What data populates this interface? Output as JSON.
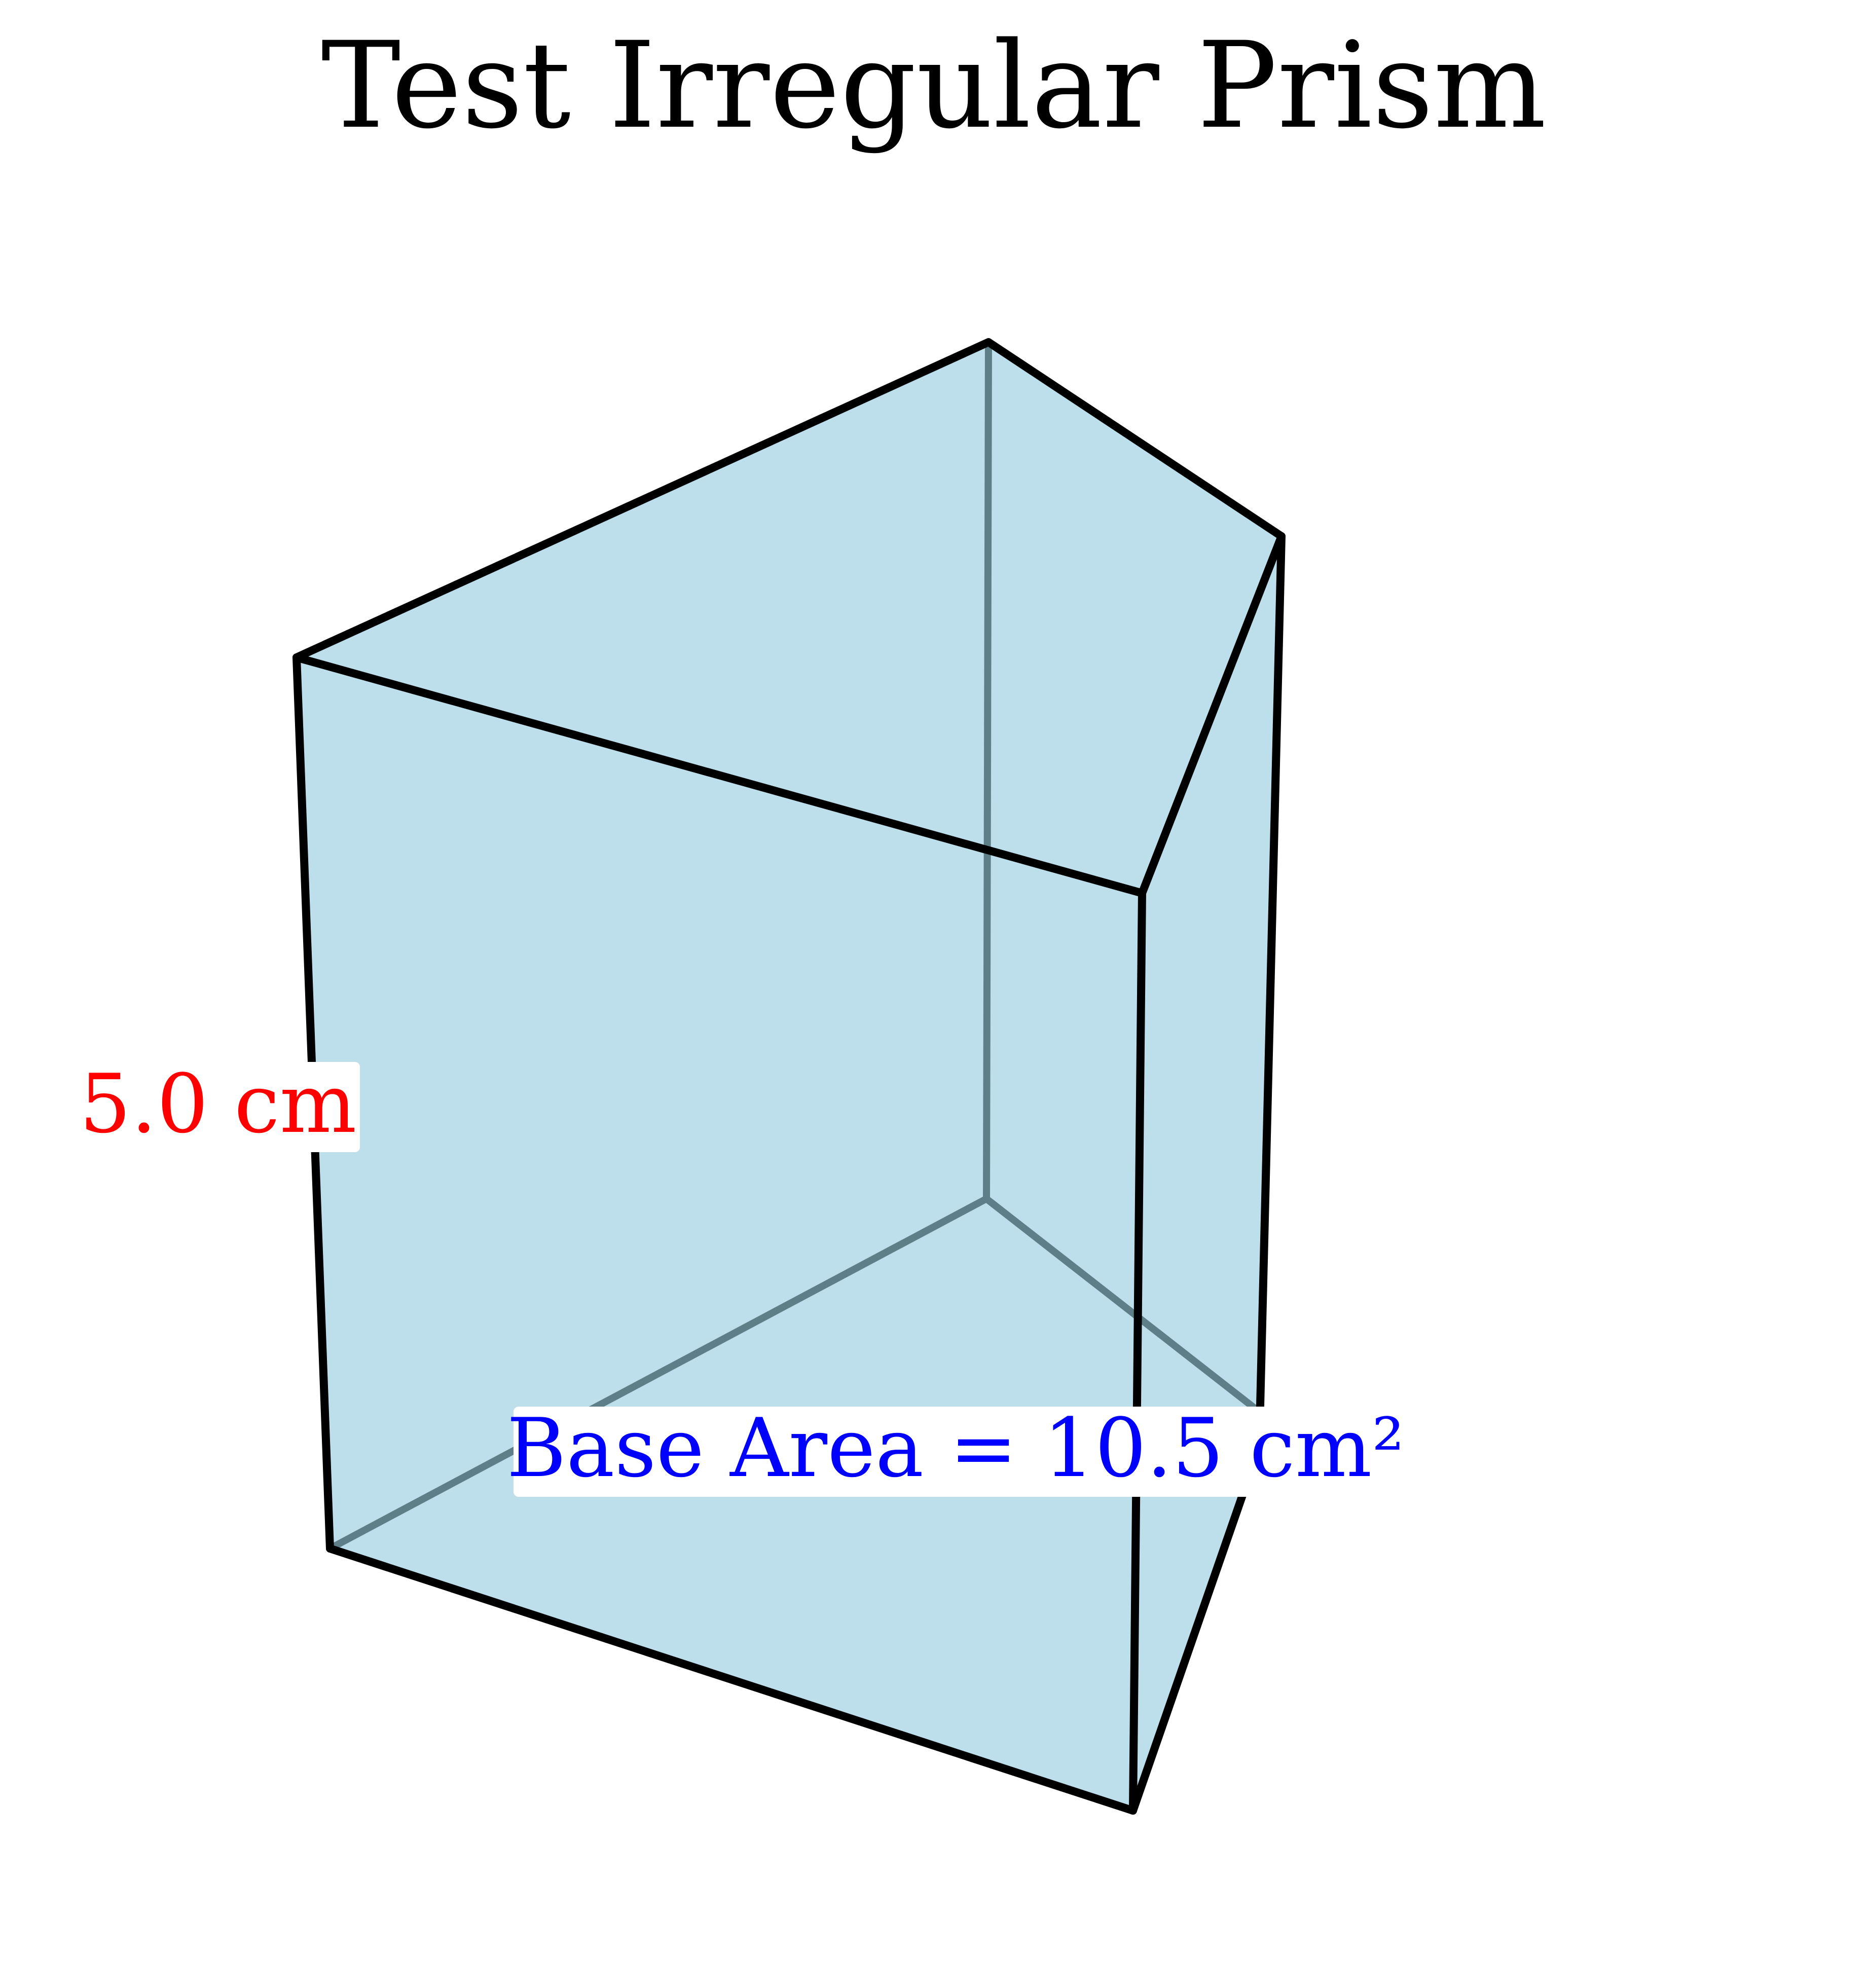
{
  "title": "Test Irregular Prism",
  "height_label": "5.0 cm",
  "base_area_label": "Base Area = 10.5 cm²",
  "colors": {
    "fill": "#add8e6",
    "edge": "#000000",
    "hidden_edge": "#5f7f88",
    "height_label": "#ff0000",
    "area_label": "#0000ff",
    "label_box": "#ffffff"
  }
}
